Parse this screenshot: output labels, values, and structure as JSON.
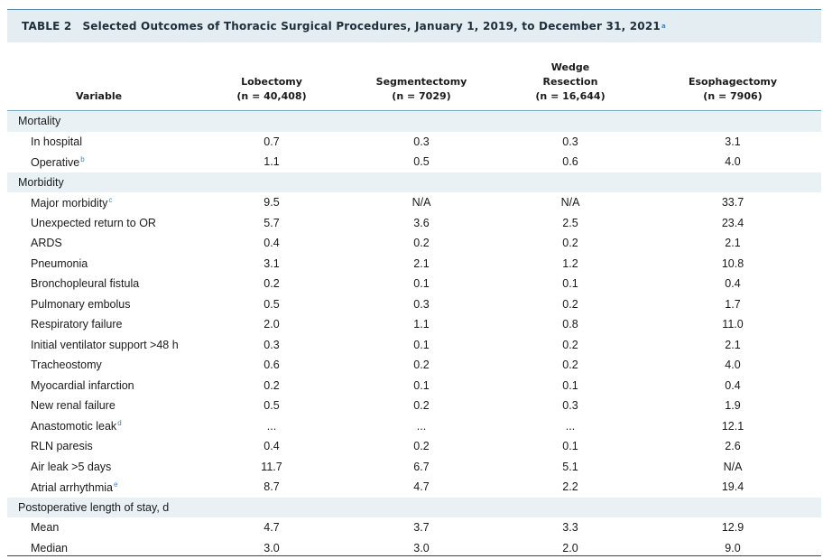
{
  "caption": {
    "table_number": "TABLE 2",
    "title": "Selected Outcomes of Thoracic Surgical Procedures, January 1, 2019, to December 31, 2021",
    "footnote_mark": "a"
  },
  "columns": [
    {
      "lines": [
        "Variable"
      ]
    },
    {
      "lines": [
        "Lobectomy",
        "(n = 40,408)"
      ]
    },
    {
      "lines": [
        "Segmentectomy",
        "(n = 7029)"
      ]
    },
    {
      "lines": [
        "Wedge",
        "Resection",
        "(n = 16,644)"
      ]
    },
    {
      "lines": [
        "Esophagectomy",
        "(n = 7906)"
      ]
    }
  ],
  "rows": [
    {
      "type": "section",
      "label": "Mortality",
      "values": [
        "",
        "",
        "",
        ""
      ]
    },
    {
      "type": "data",
      "label": "In hospital",
      "sup": "",
      "values": [
        "0.7",
        "0.3",
        "0.3",
        "3.1"
      ]
    },
    {
      "type": "data",
      "label": "Operative",
      "sup": "b",
      "values": [
        "1.1",
        "0.5",
        "0.6",
        "4.0"
      ]
    },
    {
      "type": "section",
      "label": "Morbidity",
      "values": [
        "",
        "",
        "",
        ""
      ]
    },
    {
      "type": "data",
      "label": "Major morbidity",
      "sup": "c",
      "values": [
        "9.5",
        "N/A",
        "N/A",
        "33.7"
      ]
    },
    {
      "type": "data",
      "label": "Unexpected return to OR",
      "sup": "",
      "values": [
        "5.7",
        "3.6",
        "2.5",
        "23.4"
      ]
    },
    {
      "type": "data",
      "label": "ARDS",
      "sup": "",
      "values": [
        "0.4",
        "0.2",
        "0.2",
        "2.1"
      ]
    },
    {
      "type": "data",
      "label": "Pneumonia",
      "sup": "",
      "values": [
        "3.1",
        "2.1",
        "1.2",
        "10.8"
      ]
    },
    {
      "type": "data",
      "label": "Bronchopleural fistula",
      "sup": "",
      "values": [
        "0.2",
        "0.1",
        "0.1",
        "0.4"
      ]
    },
    {
      "type": "data",
      "label": "Pulmonary embolus",
      "sup": "",
      "values": [
        "0.5",
        "0.3",
        "0.2",
        "1.7"
      ]
    },
    {
      "type": "data",
      "label": "Respiratory failure",
      "sup": "",
      "values": [
        "2.0",
        "1.1",
        "0.8",
        "11.0"
      ]
    },
    {
      "type": "data",
      "label": "Initial ventilator support >48 h",
      "sup": "",
      "values": [
        "0.3",
        "0.1",
        "0.2",
        "2.1"
      ]
    },
    {
      "type": "data",
      "label": "Tracheostomy",
      "sup": "",
      "values": [
        "0.6",
        "0.2",
        "0.2",
        "4.0"
      ]
    },
    {
      "type": "data",
      "label": "Myocardial infarction",
      "sup": "",
      "values": [
        "0.2",
        "0.1",
        "0.1",
        "0.4"
      ]
    },
    {
      "type": "data",
      "label": "New renal failure",
      "sup": "",
      "values": [
        "0.5",
        "0.2",
        "0.3",
        "1.9"
      ]
    },
    {
      "type": "data",
      "label": "Anastomotic leak",
      "sup": "d",
      "values": [
        "...",
        "...",
        "...",
        "12.1"
      ]
    },
    {
      "type": "data",
      "label": "RLN paresis",
      "sup": "",
      "values": [
        "0.4",
        "0.2",
        "0.1",
        "2.6"
      ]
    },
    {
      "type": "data",
      "label": "Air leak >5 days",
      "sup": "",
      "values": [
        "11.7",
        "6.7",
        "5.1",
        "N/A"
      ]
    },
    {
      "type": "data",
      "label": "Atrial arrhythmia",
      "sup": "e",
      "values": [
        "8.7",
        "4.7",
        "2.2",
        "19.4"
      ]
    },
    {
      "type": "section",
      "label": "Postoperative length of stay, d",
      "values": [
        "",
        "",
        "",
        ""
      ]
    },
    {
      "type": "data",
      "label": "Mean",
      "sup": "",
      "values": [
        "4.7",
        "3.7",
        "3.3",
        "12.9"
      ]
    },
    {
      "type": "data",
      "label": "Median",
      "sup": "",
      "values": [
        "3.0",
        "3.0",
        "2.0",
        "9.0"
      ]
    }
  ],
  "colors": {
    "section_background": "#e9f1f4",
    "caption_background": "#e4eef2",
    "footnote_mark": "#3a86c6"
  }
}
